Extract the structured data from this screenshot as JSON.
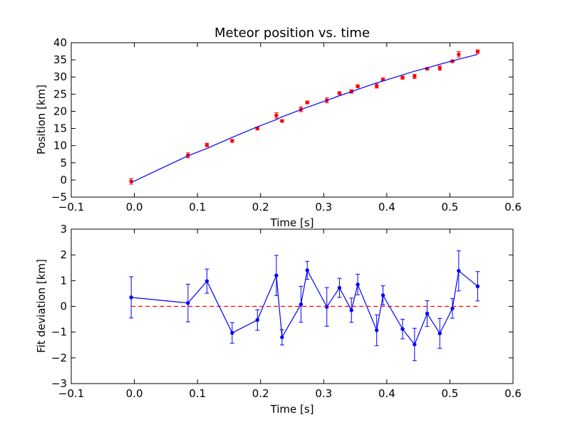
{
  "chart_data": [
    {
      "type": "scatter",
      "title": "Meteor position vs. time",
      "xlabel": "Time [s]",
      "ylabel": "Position [km]",
      "xlim": [
        -0.1,
        0.6
      ],
      "ylim": [
        -5,
        40
      ],
      "x_ticks": [
        "−0.1",
        "0.0",
        "0.1",
        "0.2",
        "0.3",
        "0.4",
        "0.5",
        "0.6"
      ],
      "y_ticks": [
        "−5",
        "0",
        "5",
        "10",
        "15",
        "20",
        "25",
        "30",
        "35",
        "40"
      ],
      "grid": false,
      "series": [
        {
          "kind": "errorbar-points",
          "color": "#ff0000",
          "points": [
            {
              "x": -0.005,
              "y": -0.4,
              "err": 0.8
            },
            {
              "x": 0.085,
              "y": 7.2,
              "err": 0.7
            },
            {
              "x": 0.115,
              "y": 10.2,
              "err": 0.5
            },
            {
              "x": 0.155,
              "y": 11.4,
              "err": 0.4
            },
            {
              "x": 0.195,
              "y": 15.0,
              "err": 0.4
            },
            {
              "x": 0.225,
              "y": 18.8,
              "err": 0.8
            },
            {
              "x": 0.234,
              "y": 17.2,
              "err": 0.3
            },
            {
              "x": 0.264,
              "y": 20.6,
              "err": 0.7
            },
            {
              "x": 0.274,
              "y": 22.6,
              "err": 0.4
            },
            {
              "x": 0.305,
              "y": 23.2,
              "err": 0.7
            },
            {
              "x": 0.325,
              "y": 25.3,
              "err": 0.4
            },
            {
              "x": 0.344,
              "y": 25.8,
              "err": 0.5
            },
            {
              "x": 0.354,
              "y": 27.3,
              "err": 0.4
            },
            {
              "x": 0.384,
              "y": 27.4,
              "err": 0.6
            },
            {
              "x": 0.394,
              "y": 29.3,
              "err": 0.4
            },
            {
              "x": 0.425,
              "y": 29.8,
              "err": 0.4
            },
            {
              "x": 0.444,
              "y": 30.2,
              "err": 0.6
            },
            {
              "x": 0.464,
              "y": 32.4,
              "err": 0.3
            },
            {
              "x": 0.484,
              "y": 32.6,
              "err": 0.6
            },
            {
              "x": 0.504,
              "y": 34.6,
              "err": 0.3
            },
            {
              "x": 0.514,
              "y": 36.6,
              "err": 0.8
            },
            {
              "x": 0.544,
              "y": 37.4,
              "err": 0.5
            }
          ]
        },
        {
          "kind": "fit-line",
          "color": "#0000ff",
          "x": [
            -0.005,
            0.085,
            0.115,
            0.155,
            0.195,
            0.225,
            0.234,
            0.264,
            0.274,
            0.305,
            0.325,
            0.344,
            0.354,
            0.384,
            0.394,
            0.425,
            0.444,
            0.464,
            0.484,
            0.504,
            0.514,
            0.544
          ],
          "y": [
            -0.75,
            7.05,
            9.2,
            12.4,
            15.5,
            17.6,
            18.4,
            20.5,
            21.2,
            23.2,
            24.55,
            25.7,
            26.4,
            28.3,
            28.85,
            30.6,
            31.7,
            32.65,
            33.7,
            34.7,
            35.2,
            36.6
          ]
        }
      ]
    },
    {
      "type": "line",
      "xlabel": "Time [s]",
      "ylabel": "Fit deviation [km]",
      "xlim": [
        -0.1,
        0.6
      ],
      "ylim": [
        -3,
        3
      ],
      "x_ticks": [
        "−0.1",
        "0.0",
        "0.1",
        "0.2",
        "0.3",
        "0.4",
        "0.5",
        "0.6"
      ],
      "y_ticks": [
        "−3",
        "−2",
        "−1",
        "0",
        "1",
        "2",
        "3"
      ],
      "grid": false,
      "series": [
        {
          "kind": "errorbar-line",
          "color": "#0000ff",
          "points": [
            {
              "x": -0.005,
              "y": 0.35,
              "err": 0.8
            },
            {
              "x": 0.085,
              "y": 0.13,
              "err": 0.73
            },
            {
              "x": 0.115,
              "y": 0.98,
              "err": 0.47
            },
            {
              "x": 0.155,
              "y": -1.03,
              "err": 0.4
            },
            {
              "x": 0.195,
              "y": -0.53,
              "err": 0.4
            },
            {
              "x": 0.225,
              "y": 1.2,
              "err": 0.78
            },
            {
              "x": 0.234,
              "y": -1.2,
              "err": 0.3
            },
            {
              "x": 0.264,
              "y": 0.08,
              "err": 0.7
            },
            {
              "x": 0.274,
              "y": 1.4,
              "err": 0.35
            },
            {
              "x": 0.305,
              "y": -0.02,
              "err": 0.75
            },
            {
              "x": 0.325,
              "y": 0.72,
              "err": 0.37
            },
            {
              "x": 0.344,
              "y": -0.15,
              "err": 0.47
            },
            {
              "x": 0.354,
              "y": 0.85,
              "err": 0.4
            },
            {
              "x": 0.384,
              "y": -0.93,
              "err": 0.6
            },
            {
              "x": 0.394,
              "y": 0.43,
              "err": 0.37
            },
            {
              "x": 0.425,
              "y": -0.88,
              "err": 0.38
            },
            {
              "x": 0.444,
              "y": -1.48,
              "err": 0.63
            },
            {
              "x": 0.464,
              "y": -0.28,
              "err": 0.5
            },
            {
              "x": 0.484,
              "y": -1.05,
              "err": 0.58
            },
            {
              "x": 0.504,
              "y": -0.08,
              "err": 0.38
            },
            {
              "x": 0.514,
              "y": 1.38,
              "err": 0.78
            },
            {
              "x": 0.544,
              "y": 0.78,
              "err": 0.57
            }
          ]
        },
        {
          "kind": "reference-line",
          "color": "#ff0000",
          "style": "dashed",
          "x": [
            -0.005,
            0.544
          ],
          "y": [
            0,
            0
          ]
        }
      ]
    }
  ]
}
